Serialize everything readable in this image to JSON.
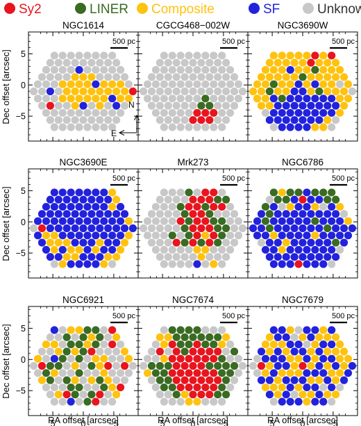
{
  "legend": [
    {
      "label": "Sy2",
      "color": "#e8141e",
      "text_color": "#e8141e"
    },
    {
      "label": "LINER",
      "color": "#3a6b22",
      "text_color": "#3a6b22"
    },
    {
      "label": "Composite",
      "color": "#ffc20e",
      "text_color": "#ffc20e"
    },
    {
      "label": "SF",
      "color": "#2222dd",
      "text_color": "#2222dd"
    },
    {
      "label": "Unknown",
      "color": "#c8c8c8",
      "text_color": "#333333"
    }
  ],
  "scale_bar_label": "500 pc",
  "axes": {
    "xlabel": "RA offset [arcsec]",
    "ylabel": "Dec offset [arcsec]",
    "xticks": [
      "5",
      "0",
      "−5"
    ],
    "yticks": [
      "5",
      "0",
      "−5"
    ]
  },
  "compass": {
    "north": "N",
    "east": "E"
  },
  "chart_data": [
    {
      "type": "scatter",
      "title": "NGC1614",
      "xlim": [
        9,
        -9
      ],
      "ylim": [
        -9,
        8.5
      ],
      "hex_map": [
        "UUUUUUUU",
        "UUUUUUUUU",
        "UUUUSUUUUU",
        "UUUUCCCUUUU",
        "UUUCCCCSCCCU",
        "UUSUCCCCCCCCR",
        "UUUCCCCCCSCC",
        "URUUCSUCUSU",
        "UUUUUUUUUU",
        "UUUUUUUUU",
        "UUUUUUUU"
      ]
    },
    {
      "type": "scatter",
      "title": "CGCG468−002W",
      "xlim": [
        9,
        -9
      ],
      "ylim": [
        -9,
        8.5
      ],
      "hex_map": [
        "UUUUUUUU",
        "UUUUUUUUU",
        "UUUUUUUUUU",
        "UUUUUUUUUUU",
        "UUUUUUUUUUUU",
        "UUUUUUUUUUUUU",
        "UUUUUUULUUUU",
        "UUUUUULLUUU",
        "UUUUURRRUU",
        "UUUURRRUU",
        "UUUUUUUU"
      ]
    },
    {
      "type": "scatter",
      "title": "NGC3690W",
      "xlim": [
        9,
        -9
      ],
      "ylim": [
        -9,
        8.5
      ],
      "hex_map": [
        "CCCCCRCR",
        "CCCCCRCCC",
        "CCCSCCLCCC",
        "CCCCCLCCCCC",
        "CCLCCSCSCCUC",
        "CCLCCSSCLCCCU",
        "CCSLSSSSSSCC",
        "CCSSSSSSSSC",
        "USSSSSSSSC",
        "SSSSSSSCU",
        "USSSSCCU"
      ]
    },
    {
      "type": "scatter",
      "title": "NGC3690E",
      "xlim": [
        9,
        -9
      ],
      "ylim": [
        -9,
        8.5
      ],
      "hex_map": [
        "SSSSSSSC",
        "SSSSSSSSC",
        "SSSSSSSSCS",
        "SSSSSSSSSSS",
        "SSSSSSSSSSSC",
        "URSSSSSSSSSSS",
        "SCCSSSSSSSSC",
        "SCCCSSSCSSC",
        "SCSCCSCSSC",
        "SSCCSSSCC",
        "UCSSSSCU"
      ]
    },
    {
      "type": "scatter",
      "title": "Mrk273",
      "xlim": [
        9,
        -9
      ],
      "ylim": [
        -9,
        8.5
      ],
      "hex_map": [
        "UUULURRU",
        "UUUURRRLL",
        "UUULRRLRRU",
        "UUUULRRLUUU",
        "UUUURLRRLLUU",
        "UUUUULRRRLLUU",
        "UUULULRCRLUU",
        "UUURLRLRLUU",
        "UUUUUCCUUU",
        "UUUUUCUUU",
        "UUUUSUCU"
      ]
    },
    {
      "type": "scatter",
      "title": "NGC6786",
      "xlim": [
        9,
        -9
      ],
      "ylim": [
        -9,
        8.5
      ],
      "hex_map": [
        "LCLLSLLL",
        "ULLSRSSLL",
        "LSUCSSCUSC",
        "SLSSSSSSSSU",
        "SLSSSSSLSSSC",
        "SSLSSSSSSLSSS",
        "SSCSSSSCSSSS",
        "USSCSSSSSLS",
        "SSCSSSSSSU",
        "SSSSSSSSS",
        "SSSRSSSU"
      ]
    },
    {
      "type": "scatter",
      "title": "NGC6921",
      "xlim": [
        9,
        -9
      ],
      "ylim": [
        -9,
        8.5
      ],
      "hex_map": [
        "SUCCLLUR",
        "UULULCLUC",
        "CCULLCLURU",
        "UUCLCLRUUUC",
        "CUSLULUCCUUC",
        "URLLUCULCRURU",
        "ULCUULUUCUUU",
        "CLULCUCLCUU",
        "UUULLUULCR",
        "UCRLULRUC",
        "UUSULRUU"
      ]
    },
    {
      "type": "scatter",
      "title": "NGC7674",
      "xlim": [
        9,
        -9
      ],
      "ylim": [
        -9,
        8.5
      ],
      "hex_map": [
        "ULLLLUUU",
        "CCLLLLLLC",
        "UCRLLRLLCU",
        "URURLRRRRUL",
        "UUCRRRRRRLUU",
        "ULLLRRRRLLLLU",
        "CLLRRRRRRLLU",
        "ULLRRRRRRLU",
        "ULLRRRRRLU",
        "UULCRRRLL",
        "UUUCCUUU"
      ]
    },
    {
      "type": "scatter",
      "title": "NGC7679",
      "xlim": [
        9,
        -9
      ],
      "ylim": [
        -9,
        8.5
      ],
      "hex_map": [
        "SSCUSSCS",
        "CSSUCSCCC",
        "CCCSSUCSSC",
        "SCSCSSCSCCC",
        "USSSCCSCSSCC",
        "URCSSCRCSCSCS",
        "UCSCCCSSSCCS",
        "SSCSSSCCSCS",
        "CCCSCSSUSU",
        "SCSUCCSCC",
        "USSSCSSU"
      ]
    }
  ]
}
